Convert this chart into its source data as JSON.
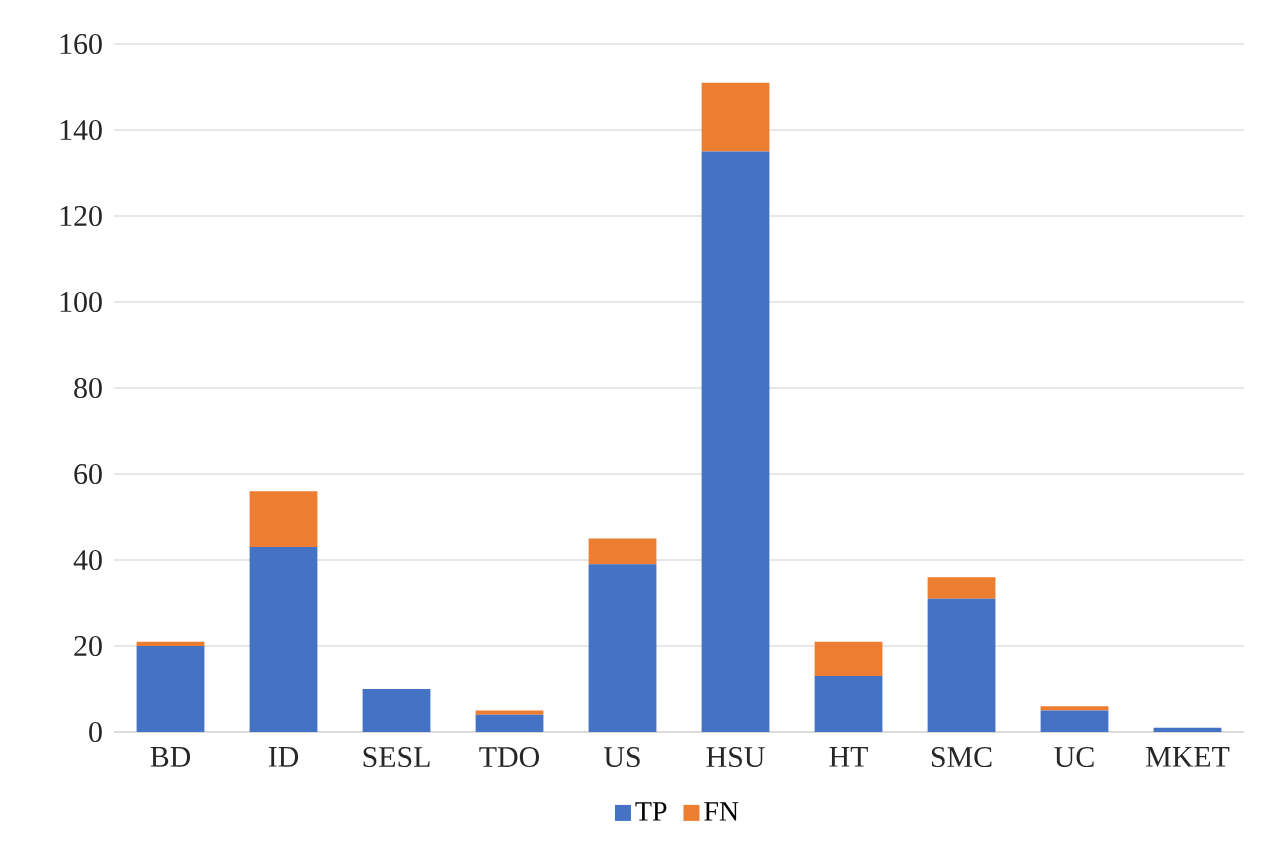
{
  "chart_data": {
    "type": "bar",
    "stacked": true,
    "categories": [
      "BD",
      "ID",
      "SESL",
      "TDO",
      "US",
      "HSU",
      "HT",
      "SMC",
      "UC",
      "MKET"
    ],
    "series": [
      {
        "name": "TP",
        "color": "#4472c4",
        "values": [
          20,
          43,
          10,
          4,
          39,
          135,
          13,
          31,
          5,
          1
        ]
      },
      {
        "name": "FN",
        "color": "#ed7d31",
        "values": [
          1,
          13,
          0,
          1,
          6,
          16,
          8,
          5,
          1,
          0
        ]
      }
    ],
    "ylim": [
      0,
      160
    ],
    "yticks": [
      0,
      20,
      40,
      60,
      80,
      100,
      120,
      140,
      160
    ],
    "grid": "y",
    "legend": "bottom"
  }
}
